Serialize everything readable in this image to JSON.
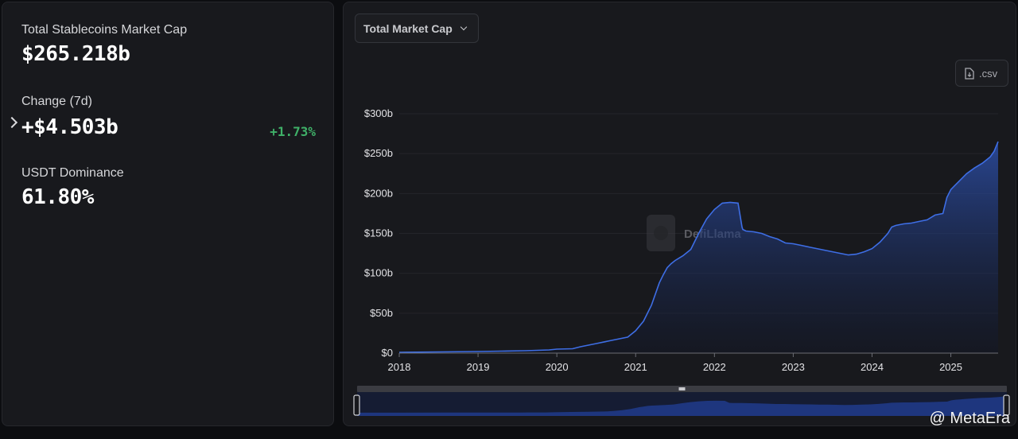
{
  "stats": {
    "total_label": "Total Stablecoins Market Cap",
    "total_value": "$265.218b",
    "change_label": "Change (7d)",
    "change_value": "+$4.503b",
    "change_pct": "+1.73%",
    "dominance_label": "USDT Dominance",
    "dominance_value": "61.80%"
  },
  "toolbar": {
    "metric_select": "Total Market Cap",
    "csv_label": ".csv"
  },
  "watermark": "DefiLlama",
  "brand": "@ MetaEra",
  "colors": {
    "line": "#3e6ee5",
    "positive": "#3fb068",
    "panel": "#18191d"
  },
  "chart_data": {
    "type": "area",
    "x_ticks": [
      "2018",
      "2019",
      "2020",
      "2021",
      "2022",
      "2023",
      "2024",
      "2025"
    ],
    "y_ticks": [
      "$0",
      "$50b",
      "$100b",
      "$150b",
      "$200b",
      "$250b",
      "$300b"
    ],
    "ylim": [
      0,
      300
    ],
    "xlim": [
      2018.0,
      2025.6
    ],
    "grid": true,
    "series": [
      {
        "values_unit": "billion USD",
        "x": [
          2018.0,
          2018.5,
          2019.0,
          2019.3,
          2019.6,
          2019.9,
          2020.0,
          2020.2,
          2020.3,
          2020.5,
          2020.7,
          2020.9,
          2021.0,
          2021.1,
          2021.2,
          2021.3,
          2021.35,
          2021.4,
          2021.45,
          2021.5,
          2021.6,
          2021.7,
          2021.8,
          2021.9,
          2022.0,
          2022.1,
          2022.2,
          2022.3,
          2022.35,
          2022.36,
          2022.4,
          2022.5,
          2022.6,
          2022.7,
          2022.8,
          2022.9,
          2023.0,
          2023.1,
          2023.2,
          2023.3,
          2023.4,
          2023.5,
          2023.6,
          2023.7,
          2023.8,
          2023.9,
          2024.0,
          2024.1,
          2024.2,
          2024.25,
          2024.3,
          2024.4,
          2024.5,
          2024.6,
          2024.7,
          2024.8,
          2024.85,
          2024.9,
          2024.95,
          2025.0,
          2025.05,
          2025.1,
          2025.2,
          2025.3,
          2025.4,
          2025.5,
          2025.55,
          2025.6
        ],
        "values": [
          1,
          1.5,
          2,
          2.5,
          3,
          4,
          5,
          5.5,
          8,
          12,
          16,
          20,
          28,
          40,
          60,
          88,
          98,
          107,
          112,
          116,
          122,
          130,
          150,
          168,
          180,
          188,
          189,
          188,
          158,
          155,
          153,
          152,
          150,
          146,
          143,
          138,
          137,
          135,
          133,
          131,
          129,
          127,
          125,
          123,
          124,
          127,
          131,
          139,
          150,
          158,
          160,
          162,
          163,
          165,
          167,
          173,
          174,
          175,
          195,
          205,
          210,
          215,
          225,
          232,
          238,
          246,
          253,
          265
        ]
      }
    ]
  }
}
